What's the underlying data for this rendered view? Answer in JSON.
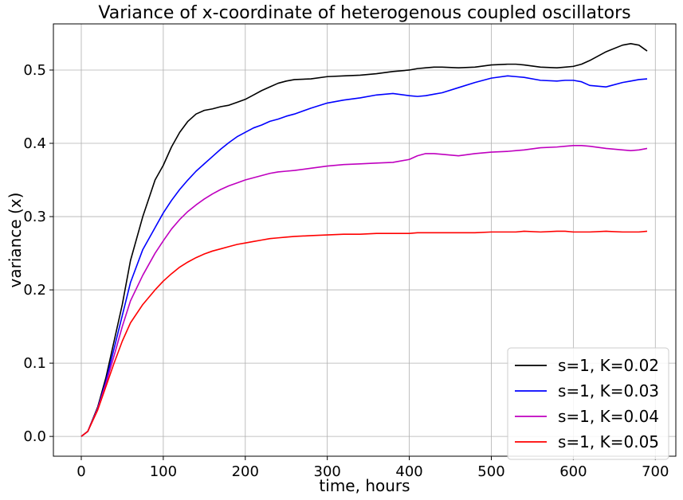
{
  "chart_data": {
    "type": "line",
    "title": "Variance of x-coordinate of heterogenous coupled oscillators",
    "xlabel": "time, hours",
    "ylabel": "variance (x)",
    "xlim": [
      -34,
      725
    ],
    "ylim": [
      -0.027,
      0.563
    ],
    "xticks": [
      0,
      100,
      200,
      300,
      400,
      500,
      600,
      700
    ],
    "yticks": [
      0.0,
      0.1,
      0.2,
      0.3,
      0.4,
      0.5
    ],
    "ytick_labels": [
      "0.0",
      "0.1",
      "0.2",
      "0.3",
      "0.4",
      "0.5"
    ],
    "grid": true,
    "legend_position": "lower-right",
    "x": [
      0,
      8,
      20,
      30,
      40,
      50,
      60,
      75,
      90,
      100,
      110,
      120,
      130,
      140,
      150,
      160,
      170,
      180,
      190,
      200,
      210,
      220,
      230,
      240,
      250,
      260,
      280,
      300,
      320,
      340,
      360,
      380,
      400,
      410,
      420,
      430,
      440,
      460,
      480,
      500,
      520,
      530,
      540,
      560,
      580,
      590,
      600,
      610,
      620,
      640,
      660,
      670,
      680,
      690
    ],
    "series": [
      {
        "name": "s=1, K=0.02",
        "color": "#000000",
        "values": [
          0.0,
          0.007,
          0.04,
          0.08,
          0.13,
          0.18,
          0.24,
          0.3,
          0.35,
          0.37,
          0.395,
          0.415,
          0.43,
          0.44,
          0.445,
          0.447,
          0.45,
          0.452,
          0.456,
          0.46,
          0.466,
          0.472,
          0.477,
          0.482,
          0.485,
          0.487,
          0.488,
          0.491,
          0.492,
          0.493,
          0.495,
          0.498,
          0.5,
          0.502,
          0.503,
          0.504,
          0.504,
          0.503,
          0.504,
          0.507,
          0.508,
          0.508,
          0.507,
          0.504,
          0.503,
          0.504,
          0.505,
          0.508,
          0.513,
          0.525,
          0.534,
          0.536,
          0.534,
          0.526
        ]
      },
      {
        "name": "s=1, K=0.03",
        "color": "#0000ff",
        "values": [
          0.0,
          0.007,
          0.038,
          0.075,
          0.12,
          0.165,
          0.21,
          0.255,
          0.285,
          0.305,
          0.322,
          0.337,
          0.35,
          0.362,
          0.372,
          0.382,
          0.392,
          0.401,
          0.409,
          0.415,
          0.421,
          0.425,
          0.43,
          0.433,
          0.437,
          0.44,
          0.448,
          0.455,
          0.459,
          0.462,
          0.466,
          0.468,
          0.465,
          0.464,
          0.465,
          0.467,
          0.469,
          0.476,
          0.483,
          0.489,
          0.492,
          0.491,
          0.49,
          0.486,
          0.485,
          0.486,
          0.486,
          0.484,
          0.479,
          0.477,
          0.483,
          0.485,
          0.487,
          0.488
        ]
      },
      {
        "name": "s=1, K=0.04",
        "color": "#bf00bf",
        "values": [
          0.0,
          0.007,
          0.038,
          0.072,
          0.11,
          0.15,
          0.185,
          0.22,
          0.25,
          0.267,
          0.283,
          0.296,
          0.307,
          0.316,
          0.324,
          0.331,
          0.337,
          0.342,
          0.346,
          0.35,
          0.353,
          0.356,
          0.359,
          0.361,
          0.362,
          0.363,
          0.366,
          0.369,
          0.371,
          0.372,
          0.373,
          0.374,
          0.378,
          0.383,
          0.386,
          0.386,
          0.385,
          0.383,
          0.386,
          0.388,
          0.389,
          0.39,
          0.391,
          0.394,
          0.395,
          0.396,
          0.397,
          0.397,
          0.396,
          0.393,
          0.391,
          0.39,
          0.391,
          0.393
        ]
      },
      {
        "name": "s=1, K=0.05",
        "color": "#ff0000",
        "values": [
          0.0,
          0.007,
          0.036,
          0.068,
          0.1,
          0.13,
          0.155,
          0.18,
          0.2,
          0.212,
          0.222,
          0.231,
          0.238,
          0.244,
          0.249,
          0.253,
          0.256,
          0.259,
          0.262,
          0.264,
          0.266,
          0.268,
          0.27,
          0.271,
          0.272,
          0.273,
          0.274,
          0.275,
          0.276,
          0.276,
          0.277,
          0.277,
          0.277,
          0.278,
          0.278,
          0.278,
          0.278,
          0.278,
          0.278,
          0.279,
          0.279,
          0.279,
          0.28,
          0.279,
          0.28,
          0.28,
          0.279,
          0.279,
          0.279,
          0.28,
          0.279,
          0.279,
          0.279,
          0.28
        ]
      }
    ]
  }
}
